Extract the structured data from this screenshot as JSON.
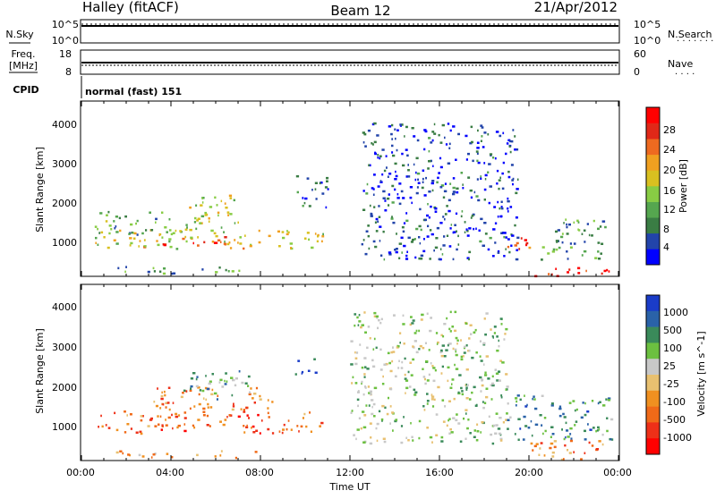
{
  "header": {
    "station": "Halley (fitACF)",
    "beam": "Beam 12",
    "date": "21/Apr/2012"
  },
  "noise_panel": {
    "left_label": "N.Sky",
    "right_label": "N.Search",
    "ticks_left": [
      "10^5",
      "10^0"
    ],
    "ticks_right": [
      "10^5",
      "10^0"
    ]
  },
  "freq_panel": {
    "left_label_1": "Freq.",
    "left_label_2": "[MHz]",
    "right_label": "Nave",
    "ticks_left": [
      "18",
      "8"
    ],
    "ticks_right": [
      "60",
      "0"
    ]
  },
  "cpid": {
    "label": "CPID",
    "text": "normal (fast) 151"
  },
  "chart_data": [
    {
      "type": "heatmap",
      "title": "",
      "ylabel": "Slant Range [km]",
      "xlabel": "",
      "x_range_hours": [
        0,
        24
      ],
      "ylim": [
        180,
        4500
      ],
      "yticks": [
        "1000",
        "2000",
        "3000",
        "4000"
      ],
      "colorbar": {
        "label": "Power [dB]",
        "ticks": [
          "4",
          "8",
          "12",
          "16",
          "20",
          "24",
          "28"
        ],
        "colors": [
          "#0000ff",
          "#2244aa",
          "#3a7d44",
          "#55a64f",
          "#88cc44",
          "#d9c020",
          "#f0a020",
          "#ee6a20",
          "#e02818",
          "#ff0000"
        ]
      },
      "echo_regions": [
        {
          "t0": 0.6,
          "t1": 10.8,
          "r0": 850,
          "r1": 1350,
          "level": 0.55
        },
        {
          "t0": 3.5,
          "t1": 6.5,
          "r0": 950,
          "r1": 1200,
          "level": 0.85
        },
        {
          "t0": 4.5,
          "t1": 7.0,
          "r0": 1300,
          "r1": 2200,
          "level": 0.5
        },
        {
          "t0": 0.5,
          "t1": 4.0,
          "r0": 1200,
          "r1": 1800,
          "level": 0.35
        },
        {
          "t0": 1.5,
          "t1": 8.0,
          "r0": 250,
          "r1": 420,
          "level": 0.3
        },
        {
          "t0": 9.5,
          "t1": 11.0,
          "r0": 1900,
          "r1": 2700,
          "level": 0.2
        },
        {
          "t0": 12.5,
          "t1": 19.5,
          "r0": 600,
          "r1": 4000,
          "level": 0.15
        },
        {
          "t0": 18.8,
          "t1": 20.2,
          "r0": 800,
          "r1": 1200,
          "level": 0.8
        },
        {
          "t0": 20.0,
          "t1": 23.7,
          "r0": 180,
          "r1": 400,
          "level": 0.92
        },
        {
          "t0": 20.5,
          "t1": 23.5,
          "r0": 600,
          "r1": 1600,
          "level": 0.3
        }
      ]
    },
    {
      "type": "heatmap",
      "title": "",
      "ylabel": "Slant Range [km]",
      "xlabel": "Time UT",
      "x_range_hours": [
        0,
        24
      ],
      "ylim": [
        180,
        4500
      ],
      "xticks": [
        "00:00",
        "04:00",
        "08:00",
        "12:00",
        "16:00",
        "20:00",
        "00:00"
      ],
      "yticks": [
        "1000",
        "2000",
        "3000",
        "4000"
      ],
      "colorbar": {
        "label": "Velocity [m s^-1]",
        "ticks": [
          "1000",
          "500",
          "100",
          "25",
          "-25",
          "-100",
          "-500",
          "-1000"
        ],
        "colors": [
          "#1a3cc8",
          "#2a62a8",
          "#3a8a5a",
          "#6cc040",
          "#c8c8c8",
          "#e8c070",
          "#f09020",
          "#f06a18",
          "#ee3018",
          "#ff0000"
        ]
      },
      "echo_regions": [
        {
          "t0": 0.6,
          "t1": 10.8,
          "r0": 850,
          "r1": 1400,
          "level": 0.75
        },
        {
          "t0": 3.0,
          "t1": 8.5,
          "r0": 1400,
          "r1": 2000,
          "level": 0.7
        },
        {
          "t0": 4.5,
          "t1": 7.5,
          "r0": 1700,
          "r1": 2400,
          "level": 0.3
        },
        {
          "t0": 1.5,
          "t1": 8.0,
          "r0": 250,
          "r1": 420,
          "level": 0.6
        },
        {
          "t0": 9.5,
          "t1": 10.5,
          "r0": 2300,
          "r1": 2700,
          "level": 0.05
        },
        {
          "t0": 12.0,
          "t1": 19.0,
          "r0": 600,
          "r1": 3900,
          "level": 0.4
        },
        {
          "t0": 19.0,
          "t1": 23.7,
          "r0": 700,
          "r1": 1800,
          "level": 0.25
        },
        {
          "t0": 20.0,
          "t1": 23.5,
          "r0": 200,
          "r1": 700,
          "level": 0.7
        }
      ]
    }
  ]
}
